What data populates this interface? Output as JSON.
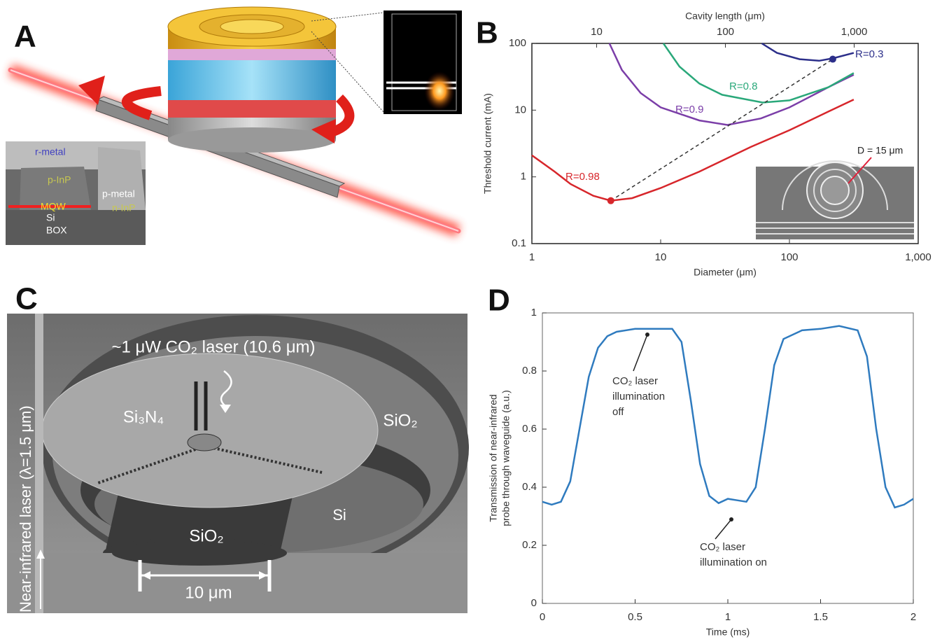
{
  "panel_labels": [
    "A",
    "B",
    "C",
    "D"
  ],
  "panel_a": {
    "sem_labels": [
      "r-metal",
      "p-InP",
      "p-metal",
      "MQW",
      "n-InP",
      "Si",
      "BOX"
    ]
  },
  "panel_c": {
    "labels": [
      "~1 μW CO₂ laser (10.6 μm)",
      "Si₃N₄",
      "SiO₂",
      "Si",
      "SiO₂",
      "10 μm",
      "Near-infrared laser (λ=1.5 μm)"
    ]
  },
  "chart_data": [
    {
      "type": "line",
      "xlabel": "Diameter (μm)",
      "ylabel": "Threshold current (mA)",
      "x2label": "Cavity length (μm)",
      "xscale": "log",
      "yscale": "log",
      "xlim": [
        1,
        1000
      ],
      "xticks": [
        1,
        10,
        100,
        {
          "value": 1000,
          "label": "1,000"
        }
      ],
      "ylim": [
        0.1,
        100
      ],
      "yticks": [
        0.1,
        1,
        10,
        100
      ],
      "x2lim": [
        3.1416,
        3141.6
      ],
      "x2ticks": [
        10,
        100,
        {
          "value": 1000,
          "label": "1,000"
        }
      ],
      "series": [
        {
          "name": "R=0.98",
          "color": "#d7262b",
          "x": [
            1,
            1.5,
            2,
            3,
            4.1,
            6,
            10,
            20,
            50,
            100,
            200,
            316
          ],
          "values": [
            2.1,
            1.2,
            0.78,
            0.52,
            0.44,
            0.48,
            0.68,
            1.2,
            2.8,
            5,
            9.5,
            14.4
          ]
        },
        {
          "name": "R=0.9",
          "color": "#7b3ea8",
          "x": [
            4,
            5,
            7,
            10,
            20,
            33,
            60,
            100,
            200,
            316
          ],
          "values": [
            100,
            40,
            18,
            11,
            7,
            6,
            7.5,
            11,
            22,
            34
          ]
        },
        {
          "name": "R=0.8",
          "color": "#2aa87a",
          "x": [
            10.5,
            14,
            20,
            30,
            62,
            100,
            200,
            316
          ],
          "values": [
            100,
            45,
            25,
            17,
            13,
            14,
            22,
            36
          ]
        },
        {
          "name": "R=0.3",
          "color": "#2c2f8a",
          "x": [
            61,
            80,
            120,
            170,
            220,
            316
          ],
          "values": [
            100,
            72,
            58,
            55,
            60,
            72
          ]
        }
      ],
      "dashed_line": {
        "x": [
          4.1,
          217
        ],
        "y": [
          0.44,
          58
        ]
      },
      "inset_label": "D = 15 μm"
    },
    {
      "type": "line",
      "xlabel": "Time (ms)",
      "ylabel": [
        "Transmission of near-infrared",
        "probe through waveguide (a.u.)"
      ],
      "xlim": [
        0,
        2
      ],
      "xticks": [
        0,
        0.5,
        1,
        1.5,
        2
      ],
      "ylim": [
        0,
        1
      ],
      "yticks": [
        0,
        0.2,
        0.4,
        0.6,
        0.8,
        1
      ],
      "series": [
        {
          "color": "#2f7bbf",
          "x": [
            0,
            0.05,
            0.1,
            0.15,
            0.2,
            0.25,
            0.3,
            0.35,
            0.4,
            0.5,
            0.6,
            0.7,
            0.75,
            0.8,
            0.85,
            0.9,
            0.95,
            1.0,
            1.05,
            1.1,
            1.15,
            1.2,
            1.25,
            1.3,
            1.4,
            1.5,
            1.6,
            1.7,
            1.75,
            1.8,
            1.85,
            1.9,
            1.95,
            2.0
          ],
          "values": [
            0.35,
            0.34,
            0.35,
            0.42,
            0.6,
            0.78,
            0.88,
            0.92,
            0.935,
            0.945,
            0.945,
            0.945,
            0.9,
            0.7,
            0.48,
            0.37,
            0.345,
            0.36,
            0.355,
            0.35,
            0.4,
            0.6,
            0.82,
            0.91,
            0.94,
            0.945,
            0.955,
            0.94,
            0.85,
            0.6,
            0.4,
            0.33,
            0.34,
            0.36
          ]
        }
      ],
      "annotations": [
        {
          "text": [
            "CO₂ laser",
            "illumination",
            "off"
          ]
        },
        {
          "text": [
            "CO₂ laser",
            "illumination on"
          ]
        }
      ]
    }
  ]
}
